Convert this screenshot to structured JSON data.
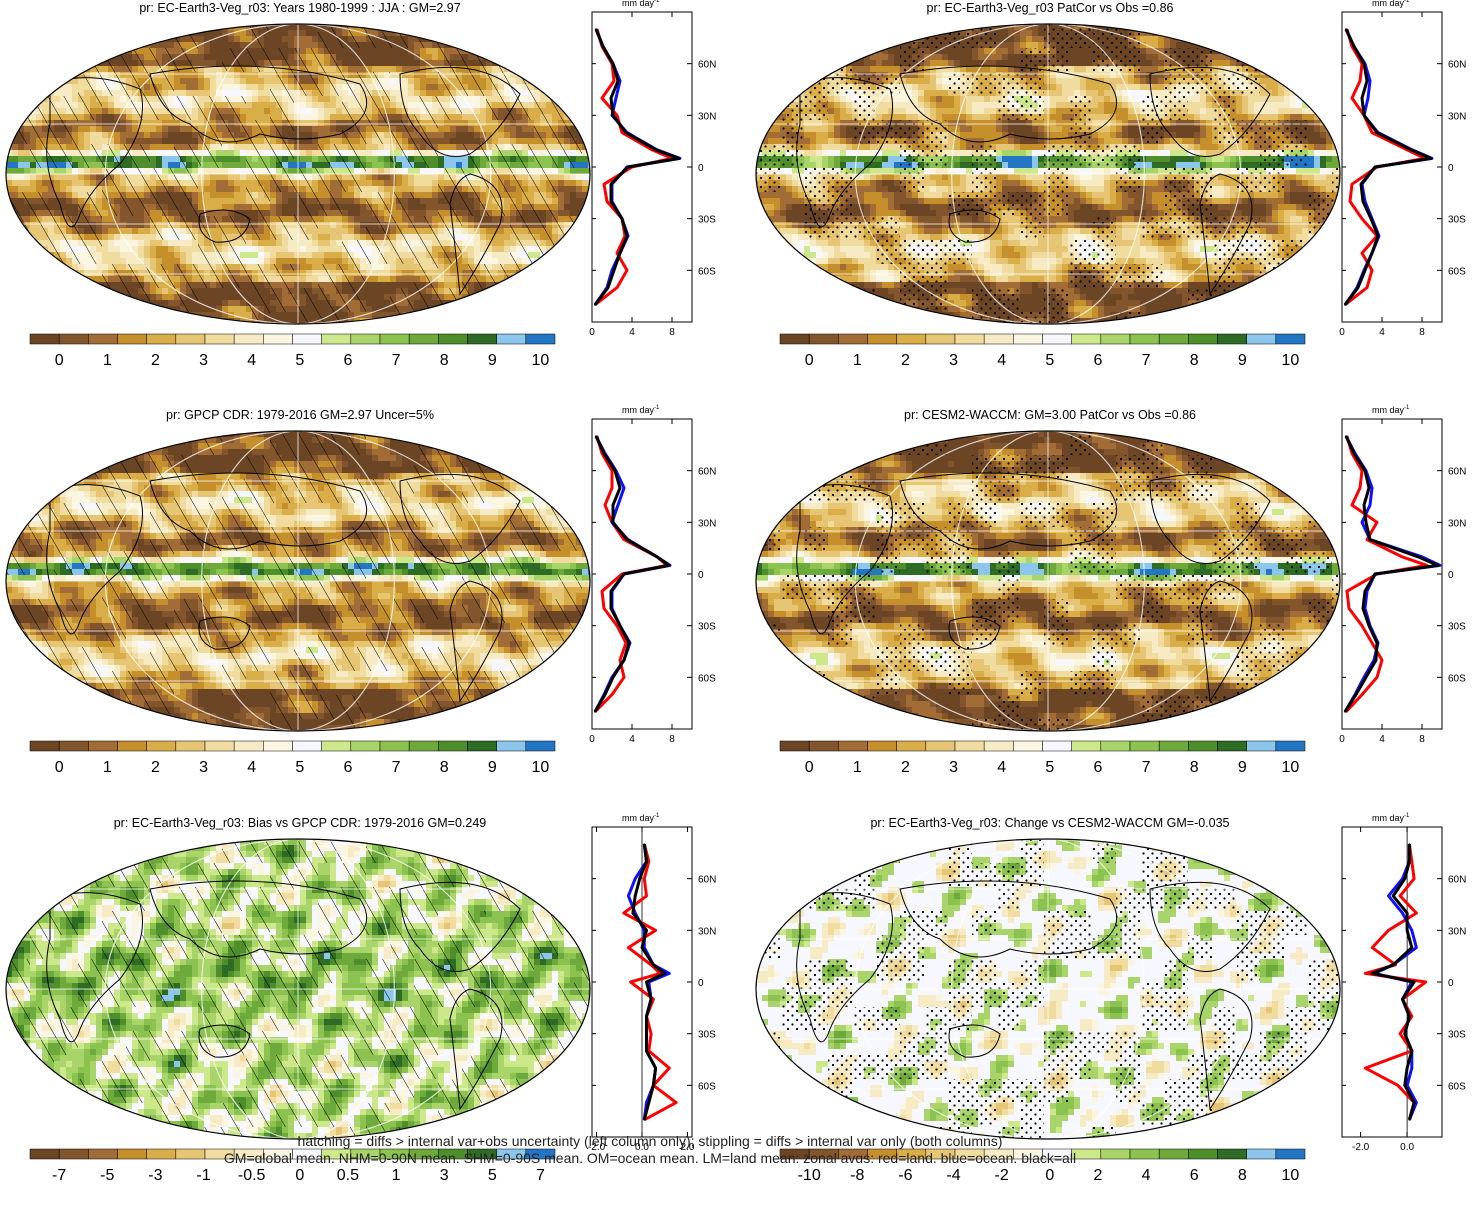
{
  "footnotes": [
    "hatching = diffs > internal var+obs uncertainty (left column only); stippling = diffs > internal var only (both columns)",
    "GM=global mean, NHM=0-90N mean, SHM=0-90S mean, OM=ocean mean, LM=land mean; zonal avgs: red=land, blue=ocean, black=all"
  ],
  "colors": {
    "land": "#ff0000",
    "ocean": "#1010ff",
    "all": "#000000",
    "abs_scale": [
      "#6b4524",
      "#82552d",
      "#a16c35",
      "#c58f2b",
      "#d9ad48",
      "#e6c674",
      "#efdc9e",
      "#f6ebc4",
      "#fbf6e2",
      "#f7f8ff",
      "#cce88a",
      "#a9d46a",
      "#8bc250",
      "#6ea93c",
      "#4f8f2b",
      "#2e6b25",
      "#8cc6ec",
      "#2376c4"
    ],
    "diff_scale": [
      "#6b4524",
      "#82552d",
      "#a16c35",
      "#c58f2b",
      "#d9ad48",
      "#e6c674",
      "#efdc9e",
      "#f6ebc4",
      "#fbf6e2",
      "#f7f8ff",
      "#cce88a",
      "#a9d46a",
      "#8bc250",
      "#6ea93c",
      "#4f8f2b",
      "#2e6b25",
      "#8cc6ec",
      "#2376c4"
    ]
  },
  "chart_data": [
    {
      "id": "p1",
      "type": "map",
      "title": "pr: EC-Earth3-Veg_r03: Years 1980-1999 : JJA : GM=2.97",
      "pattern": "hatch",
      "scale": "abs",
      "colorbar_labels": [
        "0",
        "1",
        "2",
        "3",
        "4",
        "5",
        "6",
        "7",
        "8",
        "9",
        "10"
      ],
      "zonal": {
        "unit": "mm day",
        "unit_sup": "-1",
        "xticks": [
          "0",
          "4",
          "8"
        ],
        "xlim": [
          0,
          10
        ],
        "yticks": [
          "60N",
          "30N",
          "0",
          "30S",
          "60S"
        ],
        "lat": [
          80,
          70,
          60,
          50,
          40,
          30,
          20,
          10,
          5,
          0,
          -10,
          -20,
          -30,
          -40,
          -50,
          -60,
          -70,
          -80
        ],
        "land": [
          0.5,
          1,
          2,
          2.2,
          1,
          2.5,
          3,
          6,
          8,
          4,
          1.2,
          1.5,
          3,
          3.3,
          2.5,
          3.5,
          2.5,
          0.3
        ],
        "ocean": [
          0.4,
          1.1,
          2.1,
          2.8,
          2.4,
          2,
          3.5,
          6.5,
          8.8,
          3.5,
          2,
          2,
          3,
          3.6,
          2.8,
          2,
          1.5,
          0.3
        ],
        "all": [
          0.4,
          1.1,
          2.1,
          2.6,
          1.9,
          2.1,
          3.4,
          6.4,
          8.7,
          3.6,
          1.9,
          1.9,
          3,
          3.5,
          2.8,
          2.2,
          1.6,
          0.3
        ]
      }
    },
    {
      "id": "p2",
      "type": "map",
      "title": "pr: EC-Earth3-Veg_r03 PatCor vs Obs =0.86",
      "pattern": "stipple",
      "scale": "abs",
      "colorbar_labels": [
        "0",
        "1",
        "2",
        "3",
        "4",
        "5",
        "6",
        "7",
        "8",
        "9",
        "10"
      ],
      "zonal": {
        "unit": "mm day",
        "unit_sup": "-1",
        "xticks": [
          "0",
          "4",
          "8"
        ],
        "xlim": [
          0,
          10
        ],
        "yticks": [
          "60N",
          "30N",
          "0",
          "30S",
          "60S"
        ],
        "lat": [
          80,
          70,
          60,
          50,
          40,
          30,
          20,
          10,
          5,
          0,
          -10,
          -20,
          -30,
          -40,
          -50,
          -60,
          -70,
          -80
        ],
        "land": [
          0.5,
          1,
          2,
          1.8,
          1,
          2.2,
          3,
          6.5,
          8.3,
          3.5,
          1,
          0.8,
          2,
          3.5,
          2,
          3,
          2.5,
          0.3
        ],
        "ocean": [
          0.4,
          1.2,
          2.3,
          2.8,
          2.6,
          2.2,
          3.6,
          7,
          9,
          3.3,
          2,
          2.3,
          3,
          3.7,
          3,
          2.2,
          1.5,
          0.3
        ],
        "all": [
          0.4,
          1.2,
          2.2,
          2.5,
          2,
          2.2,
          3.5,
          6.9,
          8.9,
          3.3,
          1.9,
          2.1,
          2.9,
          3.6,
          3,
          2.3,
          1.6,
          0.3
        ]
      }
    },
    {
      "id": "p3",
      "type": "map",
      "title": "pr: GPCP CDR: 1979-2016 GM=2.97 Uncer=5%",
      "pattern": "hatch",
      "scale": "abs",
      "colorbar_labels": [
        "0",
        "1",
        "2",
        "3",
        "4",
        "5",
        "6",
        "7",
        "8",
        "9",
        "10"
      ],
      "zonal": {
        "unit": "mm day",
        "unit_sup": "-1",
        "xticks": [
          "0",
          "4",
          "8"
        ],
        "xlim": [
          0,
          10
        ],
        "yticks": [
          "60N",
          "30N",
          "0",
          "30S",
          "60S"
        ],
        "lat": [
          80,
          70,
          60,
          50,
          40,
          30,
          20,
          10,
          5,
          0,
          -10,
          -20,
          -30,
          -40,
          -50,
          -60,
          -70,
          -80
        ],
        "land": [
          0.5,
          1,
          2,
          2,
          1.3,
          2,
          3.2,
          6.5,
          7.5,
          3,
          1,
          1.2,
          2.5,
          3.4,
          2.8,
          3.2,
          2,
          0.3
        ],
        "ocean": [
          0.4,
          1.3,
          2.4,
          3.2,
          2.6,
          2,
          3.6,
          6.5,
          7.8,
          3.2,
          2,
          2,
          2.8,
          3.8,
          3.2,
          2,
          1.2,
          0.3
        ],
        "all": [
          0.4,
          1.2,
          2.3,
          2.8,
          2.1,
          2.1,
          3.5,
          6.5,
          7.7,
          3.2,
          1.9,
          1.9,
          2.8,
          3.7,
          3.2,
          2.1,
          1.3,
          0.3
        ]
      }
    },
    {
      "id": "p4",
      "type": "map",
      "title": "pr: CESM2-WACCM: GM=3.00 PatCor vs Obs =0.86",
      "pattern": "stipple",
      "scale": "abs",
      "colorbar_labels": [
        "0",
        "1",
        "2",
        "3",
        "4",
        "5",
        "6",
        "7",
        "8",
        "9",
        "10"
      ],
      "zonal": {
        "unit": "mm day",
        "unit_sup": "-1",
        "xticks": [
          "0",
          "4",
          "8"
        ],
        "xlim": [
          0,
          10
        ],
        "yticks": [
          "60N",
          "30N",
          "0",
          "30S",
          "60S"
        ],
        "lat": [
          80,
          70,
          60,
          50,
          40,
          30,
          20,
          10,
          5,
          0,
          -10,
          -20,
          -30,
          -40,
          -50,
          -60,
          -70,
          -80
        ],
        "land": [
          0.5,
          1,
          2,
          1.8,
          1,
          3.5,
          2.5,
          6,
          8.5,
          3.5,
          0.5,
          0.7,
          2,
          3,
          4,
          3.5,
          2,
          0.4
        ],
        "ocean": [
          0.4,
          1.3,
          2.4,
          3,
          2.8,
          2,
          2.8,
          8,
          9.8,
          3.3,
          2.5,
          2.3,
          2.8,
          3.6,
          3.2,
          2.2,
          1.3,
          0.3
        ],
        "all": [
          0.4,
          1.2,
          2.3,
          2.7,
          2.2,
          2.4,
          2.8,
          7.6,
          9.6,
          3.3,
          2.3,
          2.1,
          2.7,
          3.5,
          3.4,
          2.4,
          1.4,
          0.3
        ]
      }
    },
    {
      "id": "p5",
      "type": "map",
      "title": "pr: EC-Earth3-Veg_r03: Bias vs GPCP CDR: 1979-2016 GM=0.249",
      "pattern": "hatch",
      "scale": "bias",
      "colorbar_labels": [
        "-7",
        "-5",
        "-3",
        "-1",
        "-0.5",
        "0",
        "0.5",
        "1",
        "3",
        "5",
        "7"
      ],
      "zonal": {
        "unit": "mm day",
        "unit_sup": "-1",
        "xticks": [
          "-2.0",
          "0.0",
          "2.0"
        ],
        "xlim": [
          -2.2,
          2.2
        ],
        "yticks": [
          "60N",
          "30N",
          "0",
          "30S",
          "60S"
        ],
        "lat": [
          80,
          70,
          60,
          50,
          40,
          30,
          20,
          10,
          5,
          0,
          -10,
          -20,
          -30,
          -40,
          -50,
          -60,
          -70,
          -80
        ],
        "land": [
          0.1,
          0.3,
          0.1,
          0.2,
          -0.8,
          0.6,
          -0.6,
          0.4,
          0.8,
          -0.5,
          0.5,
          0.2,
          0.4,
          0.3,
          1.2,
          0.5,
          1.5,
          0.1
        ],
        "ocean": [
          0.1,
          0.2,
          -0.3,
          -0.6,
          -0.3,
          0.1,
          0.1,
          0.5,
          1.2,
          0.3,
          0.4,
          0.2,
          0.2,
          0.2,
          0.6,
          0.5,
          0.2,
          0.1
        ],
        "all": [
          0.1,
          0.2,
          -0.1,
          -0.3,
          -0.4,
          0.2,
          0,
          0.5,
          1,
          0.2,
          0.4,
          0.2,
          0.2,
          0.2,
          0.6,
          0.5,
          0.3,
          0.1
        ]
      }
    },
    {
      "id": "p6",
      "type": "map",
      "title": "pr: EC-Earth3-Veg_r03: Change vs CESM2-WACCM GM=-0.035",
      "pattern": "stipple",
      "scale": "diff",
      "colorbar_labels": [
        "-10",
        "-8",
        "-6",
        "-4",
        "-2",
        "0",
        "2",
        "4",
        "6",
        "8",
        "10"
      ],
      "zonal": {
        "unit": "mm day",
        "unit_sup": "-1",
        "xticks": [
          "-2.0",
          "0.0"
        ],
        "xlim": [
          -2.8,
          1.5
        ],
        "yticks": [
          "60N",
          "30N",
          "0",
          "30S",
          "60S"
        ],
        "lat": [
          80,
          70,
          60,
          50,
          40,
          30,
          20,
          10,
          5,
          0,
          -10,
          -20,
          -30,
          -40,
          -50,
          -60,
          -70,
          -80
        ],
        "land": [
          0.1,
          0.2,
          0.3,
          -0.3,
          0.4,
          -0.8,
          -1.5,
          -0.5,
          -1.8,
          0.8,
          -0.2,
          0.2,
          -0.3,
          0.2,
          -1.8,
          -0.4,
          0.3,
          0.1
        ],
        "ocean": [
          0.1,
          0.1,
          -0.2,
          -0.8,
          -0.2,
          0.2,
          0.4,
          -0.6,
          -1.4,
          0.2,
          -0.2,
          0.1,
          -0.1,
          0.2,
          0.2,
          0,
          0.4,
          0.1
        ],
        "all": [
          0.1,
          0.1,
          -0.1,
          -0.6,
          0,
          0,
          0.2,
          -0.6,
          -1.5,
          0.3,
          -0.2,
          0.1,
          -0.1,
          0.2,
          0,
          -0.1,
          0.3,
          0.1
        ]
      }
    }
  ]
}
